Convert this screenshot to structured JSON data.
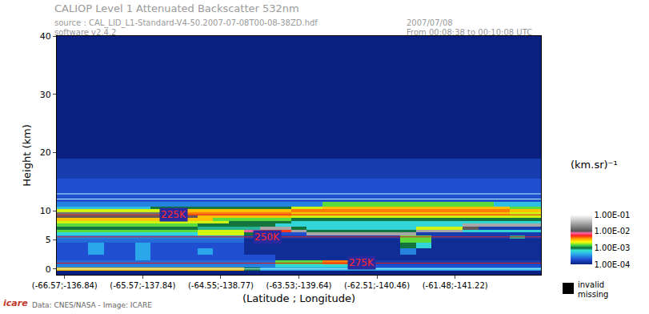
{
  "chart_data": {
    "type": "heatmap",
    "title": "CALIOP Level 1 Attenuated Backscatter 532nm",
    "subtitle": [
      "source : CAL_LID_L1-Standard-V4-50.2007-07-08T00-08-38ZD.hdf",
      "software v2.4.2"
    ],
    "date": "2007/07/08",
    "time_span": "From 00:08:38 to 00:10:08 UTC",
    "credits": "Data: CNES/NASA - Image: ICARE",
    "logo": "icare",
    "xlabel": "(Latitude ; Longitude)",
    "ylabel": "Height (km)",
    "categories": [
      "(-66.57;-136.84)",
      null,
      null,
      null,
      null,
      "(-65.57;-137.84)",
      null,
      null,
      null,
      null,
      "(-64.55;-138.77)",
      null,
      null,
      null,
      null,
      "(-63.53;-139.64)",
      null,
      null,
      null,
      null,
      "(-62.51;-140.46)",
      null,
      null,
      null,
      null,
      "(-61.48;-141.22)",
      null,
      null,
      null,
      null,
      null
    ],
    "y": [
      -0.5,
      0,
      0.5,
      1,
      2,
      3,
      4,
      5,
      5.5,
      6,
      6.5,
      7,
      7.5,
      8,
      8.5,
      9,
      9.5,
      10,
      10.5,
      11,
      12,
      14,
      17,
      21,
      26,
      32,
      40
    ],
    "ylim": [
      -1,
      40
    ],
    "yticks": [
      0,
      5,
      10,
      20,
      30,
      40
    ],
    "grid": false,
    "cells": [
      [
        0.0001,
        0.0001,
        0.0001,
        0.0001,
        0.0001,
        0.0001,
        0.0001,
        0.0001,
        0.0001,
        0.0001,
        0.0001,
        0.0001,
        0.0001,
        0.0001,
        0.0001,
        0.0001,
        0.0001,
        0.0001,
        0.0001,
        0.0001,
        0.0001,
        0.0001,
        0.0001,
        0.0001,
        0.0001,
        0.0001,
        0.0001,
        0.0001,
        0.0001,
        0.0001,
        0.0001
      ],
      [
        0.003,
        0.003,
        0.003,
        0.003,
        0.003,
        0.003,
        0.003,
        0.003,
        0.003,
        0.003,
        0.003,
        0.003,
        0.001,
        0.0004,
        0.0004,
        0.0004,
        0.0004,
        0.0004,
        0.0004,
        0.0004,
        0.0004,
        0.0004,
        0.0004,
        0.0004,
        0.0004,
        0.0004,
        0.0004,
        0.0004,
        0.0004,
        0.0004,
        0.0004
      ],
      [
        0.0003,
        0.0003,
        0.0003,
        0.0003,
        0.0003,
        0.0003,
        0.0003,
        0.0003,
        0.0003,
        0.0003,
        0.0003,
        0.0003,
        0.0003,
        0.0003,
        0.0006,
        0.0006,
        0.0006,
        0.0006,
        0.0006,
        0.0002,
        0.0002,
        0.0002,
        0.0002,
        0.0002,
        0.0002,
        0.0002,
        0.0002,
        0.0002,
        0.0002,
        0.0002,
        0.0002
      ],
      [
        0.00025,
        0.00025,
        0.00025,
        0.00025,
        0.00025,
        0.00025,
        0.00025,
        0.00025,
        0.00025,
        0.00025,
        0.00025,
        0.00025,
        0.00025,
        0.00025,
        0.0015,
        0.0015,
        0.0015,
        0.004,
        0.004,
        0.001,
        0.00015,
        0.00015,
        0.00015,
        0.00015,
        0.00015,
        0.00015,
        0.00015,
        0.00015,
        0.00015,
        0.00015,
        0.00015
      ],
      [
        0.0002,
        0.0002,
        0.0002,
        0.0002,
        0.0002,
        0.0004,
        0.0002,
        0.0002,
        0.0002,
        0.0002,
        0.0002,
        0.0002,
        0.0002,
        0.0002,
        0.00012,
        0.00012,
        0.00012,
        0.00012,
        0.00012,
        0.00012,
        0.00012,
        0.00012,
        0.00012,
        0.00012,
        0.00012,
        0.00012,
        0.00012,
        0.00012,
        0.00012,
        0.00012,
        0.00012
      ],
      [
        0.0002,
        0.0002,
        0.0004,
        0.0002,
        0.0002,
        0.0004,
        0.0002,
        0.0002,
        0.0002,
        0.0004,
        0.0002,
        0.0002,
        0.00012,
        0.00012,
        0.00012,
        0.00012,
        0.00012,
        0.00012,
        0.00012,
        0.00012,
        0.00012,
        0.00012,
        0.0003,
        0.00012,
        0.00012,
        0.00012,
        0.00012,
        0.00012,
        0.00012,
        0.00012,
        0.00012
      ],
      [
        0.0002,
        0.0002,
        0.0004,
        0.0002,
        0.0002,
        0.0004,
        0.0002,
        0.0002,
        0.0002,
        0.0002,
        0.0002,
        0.0002,
        0.00012,
        0.00012,
        0.00012,
        0.00012,
        0.00012,
        0.00012,
        0.00012,
        0.00012,
        0.00012,
        0.00012,
        0.001,
        0.0006,
        0.00012,
        0.00012,
        0.00012,
        0.00012,
        0.00012,
        0.00012,
        0.00012
      ],
      [
        0.00025,
        0.00025,
        0.00025,
        0.00025,
        0.00025,
        0.00025,
        0.00025,
        0.00025,
        0.00025,
        0.00025,
        0.00025,
        0.00025,
        0.00012,
        0.00012,
        0.00012,
        0.00012,
        0.00012,
        0.00012,
        0.00012,
        0.00012,
        0.00012,
        0.00012,
        0.0015,
        0.0015,
        0.00012,
        0.00012,
        0.00012,
        0.00012,
        0.00012,
        0.00012,
        0.00012
      ],
      [
        0.0003,
        0.0003,
        0.0003,
        0.0003,
        0.0003,
        0.0003,
        0.0003,
        0.0003,
        0.0003,
        0.0003,
        0.0003,
        0.0003,
        0.00015,
        0.00015,
        0.00015,
        0.00015,
        0.00015,
        0.00015,
        0.00015,
        0.00015,
        0.00015,
        0.00015,
        0.0015,
        0.0015,
        0.00015,
        0.00015,
        0.00015,
        0.00015,
        0.00015,
        0.0008,
        0.00015
      ],
      [
        0.0006,
        0.0006,
        0.0006,
        0.0006,
        0.0006,
        0.0006,
        0.0006,
        0.0006,
        0.0006,
        0.002,
        0.002,
        0.002,
        0.001,
        0.0002,
        0.0002,
        0.0002,
        0.03,
        0.03,
        0.03,
        0.03,
        0.03,
        0.03,
        0.03,
        0.00015,
        0.00015,
        0.00015,
        0.00015,
        0.00015,
        0.00015,
        0.00015,
        0.00015
      ],
      [
        0.0015,
        0.0015,
        0.0015,
        0.0015,
        0.0015,
        0.0015,
        0.0015,
        0.0015,
        0.0015,
        0.002,
        0.002,
        0.002,
        0.008,
        0.005,
        0.005,
        0.03,
        0.001,
        0.001,
        0.001,
        0.001,
        0.001,
        0.001,
        0.001,
        0.03,
        0.03,
        0.03,
        0.0006,
        0.0006,
        0.0006,
        0.0006,
        0.0006
      ],
      [
        0.001,
        0.001,
        0.001,
        0.001,
        0.001,
        0.001,
        0.001,
        0.001,
        0.001,
        0.0008,
        0.0008,
        0.0008,
        0.0008,
        0.03,
        0.03,
        0.001,
        0.0006,
        0.0006,
        0.0006,
        0.0006,
        0.0006,
        0.0006,
        0.0006,
        0.002,
        0.002,
        0.002,
        0.01,
        0.00015,
        0.00015,
        0.00015,
        0.00015
      ],
      [
        0.0015,
        0.0015,
        0.0015,
        0.0015,
        0.0015,
        0.0015,
        0.0015,
        0.0015,
        0.0015,
        0.001,
        0.001,
        0.001,
        0.001,
        0.001,
        0.0006,
        0.0006,
        0.0006,
        0.0006,
        0.0006,
        0.0006,
        0.0006,
        0.0006,
        0.0006,
        0.0006,
        0.0006,
        0.0006,
        0.03,
        0.03,
        0.03,
        0.03,
        0.03
      ],
      [
        0.002,
        0.002,
        0.002,
        0.002,
        0.002,
        0.002,
        0.002,
        0.002,
        0.002,
        0.002,
        0.002,
        0.001,
        0.001,
        0.001,
        0.001,
        0.0006,
        0.0006,
        0.0006,
        0.0006,
        0.0006,
        0.0006,
        0.0006,
        0.0006,
        0.0006,
        0.0006,
        0.0006,
        0.0006,
        0.0006,
        0.0006,
        0.0006,
        0.0006
      ],
      [
        0.003,
        0.003,
        0.003,
        0.003,
        0.003,
        0.003,
        0.003,
        0.003,
        0.003,
        0.003,
        0.0015,
        0.0015,
        0.0015,
        0.0015,
        0.0015,
        0.001,
        0.001,
        0.001,
        0.001,
        0.001,
        0.001,
        0.001,
        0.001,
        0.001,
        0.001,
        0.001,
        0.001,
        0.001,
        0.001,
        0.001,
        0.001
      ],
      [
        0.01,
        0.01,
        0.01,
        0.01,
        0.01,
        0.01,
        0.01,
        0.01,
        0.01,
        0.003,
        0.003,
        0.003,
        0.003,
        0.003,
        0.003,
        0.002,
        0.002,
        0.002,
        0.002,
        0.002,
        0.002,
        0.002,
        0.002,
        0.002,
        0.002,
        0.002,
        0.002,
        0.002,
        0.002,
        0.002,
        0.002
      ],
      [
        0.015,
        0.015,
        0.015,
        0.015,
        0.015,
        0.015,
        0.015,
        0.015,
        0.004,
        0.004,
        0.004,
        0.004,
        0.004,
        0.004,
        0.004,
        0.003,
        0.003,
        0.003,
        0.003,
        0.003,
        0.003,
        0.003,
        0.003,
        0.003,
        0.003,
        0.003,
        0.003,
        0.003,
        0.003,
        0.002,
        0.002
      ],
      [
        0.002,
        0.002,
        0.002,
        0.002,
        0.002,
        0.002,
        0.002,
        0.003,
        0.003,
        0.003,
        0.003,
        0.003,
        0.003,
        0.003,
        0.003,
        0.004,
        0.004,
        0.004,
        0.004,
        0.004,
        0.004,
        0.004,
        0.004,
        0.004,
        0.004,
        0.004,
        0.004,
        0.004,
        0.004,
        0.003,
        0.003
      ],
      [
        0.0005,
        0.0005,
        0.0005,
        0.0005,
        0.0005,
        0.0005,
        0.001,
        0.001,
        0.001,
        0.001,
        0.001,
        0.001,
        0.001,
        0.001,
        0.001,
        0.002,
        0.002,
        0.003,
        0.003,
        0.003,
        0.003,
        0.003,
        0.003,
        0.003,
        0.003,
        0.003,
        0.003,
        0.003,
        0.003,
        0.0015,
        0.0015
      ],
      [
        0.0003,
        0.0003,
        0.0003,
        0.0003,
        0.0003,
        0.0003,
        0.0003,
        0.0003,
        0.0003,
        0.0003,
        0.0003,
        0.0003,
        0.0003,
        0.0003,
        0.0003,
        0.0003,
        0.0003,
        0.0015,
        0.0015,
        0.0015,
        0.0015,
        0.0015,
        0.0015,
        0.0015,
        0.0015,
        0.0015,
        0.0015,
        0.0015,
        0.0005,
        0.0005,
        0.0005
      ],
      [
        0.0002,
        0.0002,
        0.0002,
        0.0002,
        0.0002,
        0.0002,
        0.0002,
        0.0002,
        0.0002,
        0.0002,
        0.0002,
        0.0002,
        0.0002,
        0.0002,
        0.0002,
        0.0002,
        0.0002,
        0.0002,
        0.0002,
        0.0002,
        0.0002,
        0.0002,
        0.0002,
        0.0002,
        0.0002,
        0.0002,
        0.0002,
        0.0002,
        0.0002,
        0.0002,
        0.0002
      ],
      [
        0.0002,
        0.0002,
        0.0002,
        0.0002,
        0.0002,
        0.0002,
        0.0002,
        0.0002,
        0.0002,
        0.0002,
        0.0002,
        0.0002,
        0.0002,
        0.0002,
        0.0002,
        0.0002,
        0.0002,
        0.0002,
        0.0002,
        0.0002,
        0.0002,
        0.0002,
        0.0002,
        0.0002,
        0.0002,
        0.0002,
        0.0002,
        0.0002,
        0.0002,
        0.0002,
        0.0002
      ],
      [
        0.00015,
        0.00015,
        0.00015,
        0.00015,
        0.00015,
        0.00015,
        0.00015,
        0.00015,
        0.00015,
        0.00015,
        0.00015,
        0.00015,
        0.00015,
        0.00015,
        0.00015,
        0.00015,
        0.00015,
        0.00015,
        0.00015,
        0.00015,
        0.00015,
        0.00015,
        0.00015,
        0.00015,
        0.00015,
        0.00015,
        0.00015,
        0.00015,
        0.00015,
        0.00015,
        0.00015
      ],
      [
        0.0001,
        0.0001,
        0.0001,
        0.0001,
        0.0001,
        0.0001,
        0.0001,
        0.0001,
        0.0001,
        0.0001,
        0.0001,
        0.0001,
        0.0001,
        0.0001,
        0.0001,
        0.0001,
        0.0001,
        0.0001,
        0.0001,
        0.0001,
        0.0001,
        0.0001,
        0.0001,
        0.0001,
        0.0001,
        0.0001,
        0.0001,
        0.0001,
        0.0001,
        0.0001,
        0.0001
      ],
      [
        0.0001,
        0.0001,
        0.0001,
        0.0001,
        0.0001,
        0.0001,
        0.0001,
        0.0001,
        0.0001,
        0.0001,
        0.0001,
        0.0001,
        0.0001,
        0.0001,
        0.0001,
        0.0001,
        0.0001,
        0.0001,
        0.0001,
        0.0001,
        0.0001,
        0.0001,
        0.0001,
        0.0001,
        0.0001,
        0.0001,
        0.0001,
        0.0001,
        0.0001,
        0.0001,
        0.0001
      ],
      [
        0.0001,
        0.0001,
        0.0001,
        0.0001,
        0.0001,
        0.0001,
        0.0001,
        0.0001,
        0.0001,
        0.0001,
        0.0001,
        0.0001,
        0.0001,
        0.0001,
        0.0001,
        0.0001,
        0.0001,
        0.0001,
        0.0001,
        0.0001,
        0.0001,
        0.0001,
        0.0001,
        0.0001,
        0.0001,
        0.0001,
        0.0001,
        0.0001,
        0.0001,
        0.0001,
        0.0001
      ],
      [
        0.0001,
        0.0001,
        0.0001,
        0.0001,
        0.0001,
        0.0001,
        0.0001,
        0.0001,
        0.0001,
        0.0001,
        0.0001,
        0.0001,
        0.0001,
        0.0001,
        0.0001,
        0.0001,
        0.0001,
        0.0001,
        0.0001,
        0.0001,
        0.0001,
        0.0001,
        0.0001,
        0.0001,
        0.0001,
        0.0001,
        0.0001,
        0.0001,
        0.0001,
        0.0001,
        0.0001
      ]
    ],
    "colorbar": {
      "title": "(km.sr)⁻¹",
      "range": [
        0.0001,
        0.1
      ],
      "ticks": [
        {
          "value": 0.1,
          "label": "1.00E-01"
        },
        {
          "value": 0.01,
          "label": "1.00E-02"
        },
        {
          "value": 0.001,
          "label": "1.00E-03"
        },
        {
          "value": 0.0001,
          "label": "1.00E-04"
        }
      ],
      "log": true
    },
    "isotherms": [
      {
        "label": "225K",
        "height": 9.3,
        "at": 7
      },
      {
        "label": "250K",
        "height": 5.5,
        "at": 13
      },
      {
        "label": "275K",
        "height": 1.0,
        "at": 19
      }
    ],
    "reference_lines": [
      {
        "height": 0
      },
      {
        "height": 12.0
      },
      {
        "height": 12.9
      }
    ],
    "missing_legend": [
      "invalid",
      "missing"
    ]
  }
}
